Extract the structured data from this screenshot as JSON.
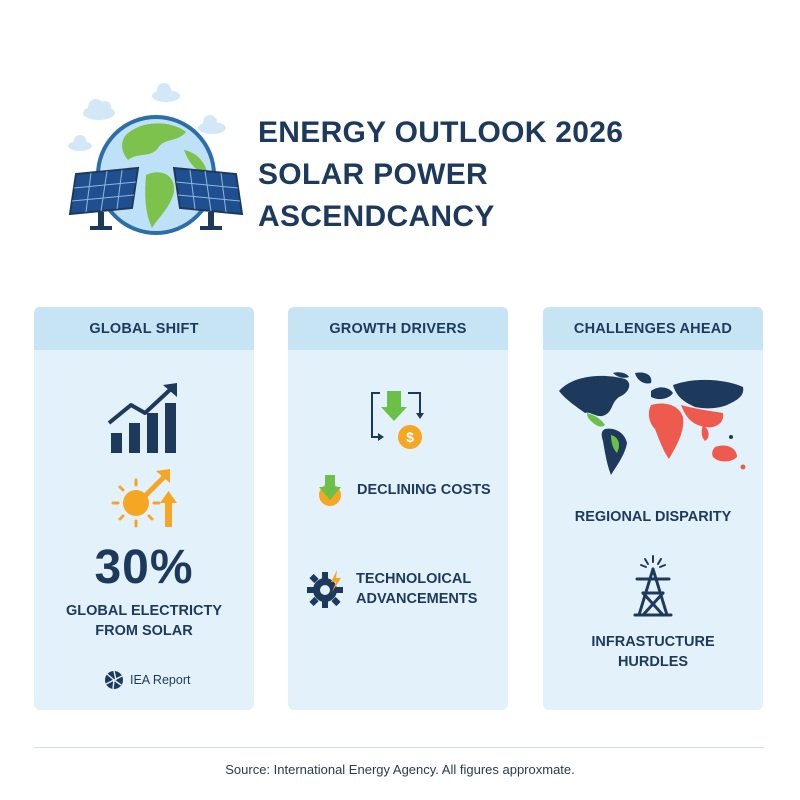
{
  "header": {
    "title_line1": "ENERGY OUTLOOK 2026",
    "title_line2": "SOLAR POWER",
    "title_line3": "ASCENDCANCY",
    "illustration_icon": "globe-with-solar-panels-icon"
  },
  "cards": {
    "global_shift": {
      "heading": "GLOBAL SHIFT",
      "stat": "30%",
      "stat_label_line1": "GLOBAL ELECTRICTY",
      "stat_label_line2": "FROM SOLAR",
      "source_badge": "IEA Report",
      "icons": [
        "bar-chart-growth-icon",
        "sun-growth-icon",
        "aperture-logo-icon"
      ]
    },
    "growth_drivers": {
      "heading": "GROWTH DRIVERS",
      "item1": "DECLINING COSTS",
      "item2_line1": "TECHNOLOICAL",
      "item2_line2": "ADVANCEMENTS",
      "icons": [
        "cost-cycle-icon",
        "down-arrow-coin-icon",
        "gear-bolt-icon"
      ]
    },
    "challenges": {
      "heading": "CHALLENGES AHEAD",
      "item1": "REGIONAL DISPARITY",
      "item2_line1": "INFRASTUCTURE",
      "item2_line2": "HURDLES",
      "icons": [
        "world-map-icon",
        "transmission-tower-icon"
      ]
    }
  },
  "footer": {
    "source": "Source: International Energy Agency. All figures approxmate."
  },
  "colors": {
    "navy": "#1d3a5c",
    "card_bg": "#e3f1fa",
    "card_header_bg": "#c7e4f4",
    "orange": "#f5a623",
    "green": "#6cc04a",
    "red": "#ef5a4f",
    "blue": "#2f7fd1"
  }
}
